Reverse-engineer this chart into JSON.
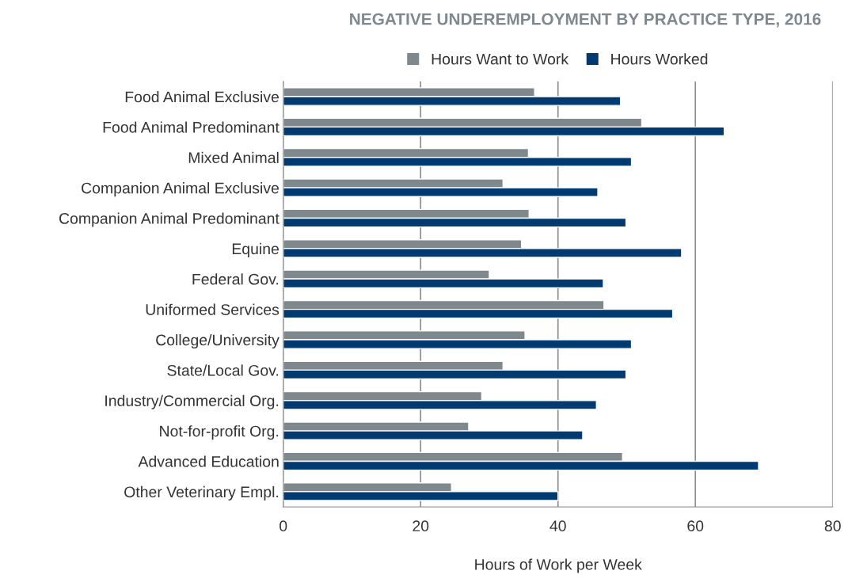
{
  "chart_data": {
    "type": "bar",
    "orientation": "horizontal",
    "title": "NEGATIVE UNDEREMPLOYMENT BY PRACTICE TYPE, 2016",
    "xlabel": "Hours of Work per Week",
    "categories": [
      "Food Animal Exclusive",
      "Food Animal Predominant",
      "Mixed Animal",
      "Companion Animal Exclusive",
      "Companion Animal Predominant",
      "Equine",
      "Federal Gov.",
      "Uniformed Services",
      "College/University",
      "State/Local Gov.",
      "Industry/Commercial Org.",
      "Not-for-profit Org.",
      "Advanced Education",
      "Other Veterinary Empl."
    ],
    "series": [
      {
        "name": "Hours Want to Work",
        "color": "#7f888d",
        "values": [
          36.6,
          52.2,
          35.7,
          32.0,
          35.8,
          34.7,
          30.0,
          46.7,
          35.2,
          32.0,
          28.9,
          27.0,
          49.4,
          24.5
        ]
      },
      {
        "name": "Hours Worked",
        "color": "#003a70",
        "values": [
          49.1,
          64.2,
          50.7,
          45.8,
          49.9,
          58.0,
          46.6,
          56.7,
          50.7,
          49.9,
          45.6,
          43.6,
          69.2,
          40.0
        ]
      }
    ],
    "xlim": [
      0,
      80
    ],
    "xticks": [
      0,
      20,
      40,
      60,
      80
    ],
    "grid": "x",
    "legend": "top"
  }
}
